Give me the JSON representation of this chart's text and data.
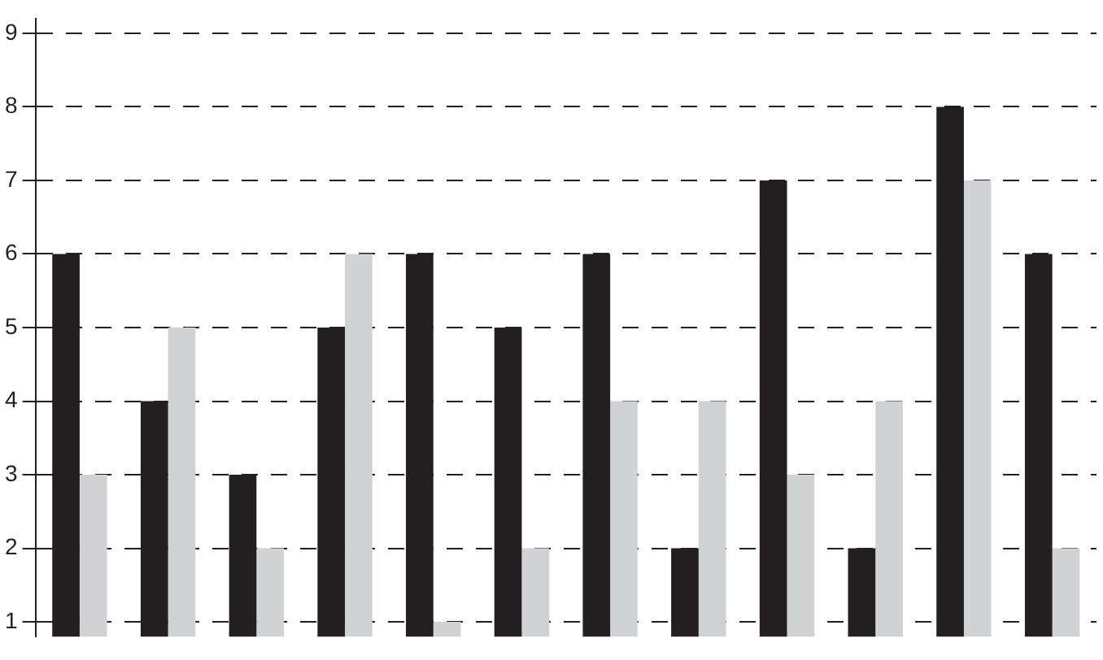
{
  "chart_data": {
    "type": "bar",
    "categories": [
      null,
      null,
      null,
      null,
      null,
      null,
      null,
      null,
      null,
      null,
      null,
      null
    ],
    "series": [
      {
        "color": "#231f20",
        "values": [
          6,
          4,
          3,
          5,
          6,
          5,
          6,
          2,
          7,
          2,
          8,
          6
        ]
      },
      {
        "color": "#d1d2d4",
        "values": [
          3,
          5,
          2,
          6,
          1,
          2,
          4,
          4,
          3,
          4,
          7,
          2
        ]
      }
    ],
    "ylim": [
      0.8,
      9.2
    ],
    "yticks": [
      1,
      2,
      3,
      4,
      5,
      6,
      7,
      8,
      9
    ],
    "grid": "y",
    "legend": false
  }
}
